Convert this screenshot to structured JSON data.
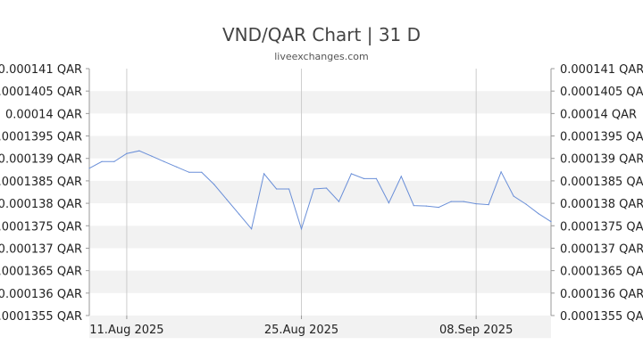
{
  "title": "VND/QAR Chart | 31 D",
  "subtitle": "liveexchanges.com",
  "colors": {
    "line": "#6a8fd8",
    "band": "#f2f2f2",
    "grid": "#cccccc"
  },
  "chart_data": {
    "type": "line",
    "title": "VND/QAR Chart | 31 D",
    "xlabel": "",
    "ylabel": "",
    "ylim": [
      0.0001355,
      0.000141
    ],
    "y_ticks": [
      "0.000141 QAR",
      "0.0001405 QAR",
      "0.00014 QAR",
      "0.0001395 QAR",
      "0.000139 QAR",
      "0.0001385 QAR",
      "0.000138 QAR",
      "0.0001375 QAR",
      "0.000137 QAR",
      "0.0001365 QAR",
      "0.000136 QAR",
      "0.0001355 QAR"
    ],
    "x_ticks": [
      "11.Aug 2025",
      "25.Aug 2025",
      "08.Sep 2025"
    ],
    "x_tick_index": [
      3,
      17,
      31
    ],
    "grid": true,
    "series": [
      {
        "values": [
          0.00013878,
          0.00013893,
          0.00013893,
          0.00013911,
          0.00013917,
          0.00013905,
          0.00013893,
          0.00013881,
          0.00013869,
          0.00013869,
          0.00013842,
          0.00013809,
          0.00013776,
          0.00013743,
          0.00013866,
          0.00013832,
          0.00013832,
          0.00013743,
          0.00013832,
          0.00013834,
          0.00013804,
          0.00013866,
          0.00013855,
          0.00013855,
          0.00013801,
          0.0001386,
          0.00013795,
          0.00013794,
          0.00013791,
          0.00013804,
          0.00013804,
          0.00013799,
          0.00013797,
          0.0001387,
          0.00013816,
          0.00013798,
          0.00013777,
          0.00013759
        ]
      }
    ]
  }
}
